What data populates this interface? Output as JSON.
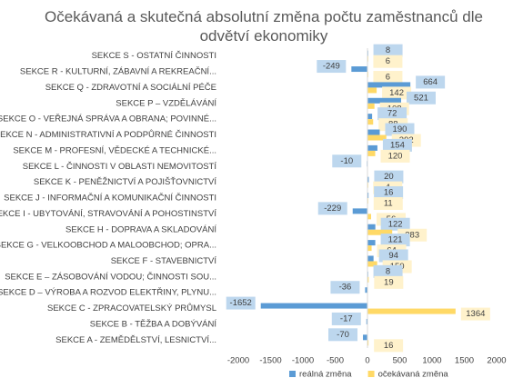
{
  "chart_data": {
    "type": "hbar",
    "title": "Očekávaná a skutečná absolutní změna počtu zaměstnanců dle odvětví ekonomiky",
    "categories": [
      "SEKCE S - OSTATNÍ ČINNOSTI",
      "SEKCE R - KULTURNÍ, ZÁBAVNÍ A REKREAČNÍ...",
      "SEKCE Q - ZDRAVOTNÍ A SOCIÁLNÍ PÉČE",
      "SEKCE P – VZDĚLÁVÁNÍ",
      "SEKCE O - VEŘEJNÁ SPRÁVA A OBRANA; POVINNÉ...",
      "SEKCE N - ADMINISTRATIVNÍ A PODPŮRNÉ ČINNOSTI",
      "SEKCE M - PROFESNÍ, VĚDECKÉ A TECHNICKÉ...",
      "SEKCE L - ČINNOSTI V OBLASTI NEMOVITOSTÍ",
      "SEKCE K - PENĚŽNICTVÍ A POJIŠŤOVNICTVÍ",
      "SEKCE J - INFORMAČNÍ A KOMUNIKAČNÍ ČINNOSTI",
      "SEKCE I - UBYTOVÁNÍ, STRAVOVÁNÍ A POHOSTINSTVÍ",
      "SEKCE H - DOPRAVA A SKLADOVÁNÍ",
      "SEKCE G - VELKOOBCHOD A MALOOBCHOD; OPRA...",
      "SEKCE F - STAVEBNICTVÍ",
      "SEKCE E – ZÁSOBOVÁNÍ VODOU; ČINNOSTI SOU...",
      "SEKCE D – VÝROBA A ROZVOD ELEKTŘINY, PLYNU...",
      "SEKCE C - ZPRACOVATELSKÝ PRŮMYSL",
      "SEKCE B - TĚŽBA A DOBÝVÁNÍ",
      "SEKCE A - ZEMĚDĚLSTVÍ, LESNICTVÍ..."
    ],
    "series": [
      {
        "name": "reálná změna",
        "color": "#5b9bd5",
        "label_color": "#bdd7ee",
        "values": [
          8,
          -249,
          664,
          521,
          72,
          190,
          154,
          -10,
          20,
          16,
          -229,
          122,
          121,
          94,
          8,
          -36,
          -1652,
          -17,
          -70
        ]
      },
      {
        "name": "očekávaná změna",
        "color": "#ffd966",
        "label_color": "#fff2cc",
        "values": [
          6,
          6,
          142,
          108,
          88,
          292,
          120,
          null,
          4,
          11,
          56,
          383,
          64,
          150,
          19,
          null,
          1364,
          null,
          16
        ]
      }
    ],
    "xlim": [
      -2000,
      2000
    ],
    "xticks": [
      -2000,
      -1500,
      -1000,
      -500,
      0,
      500,
      1000,
      1500,
      2000
    ],
    "legend": "bottom"
  }
}
